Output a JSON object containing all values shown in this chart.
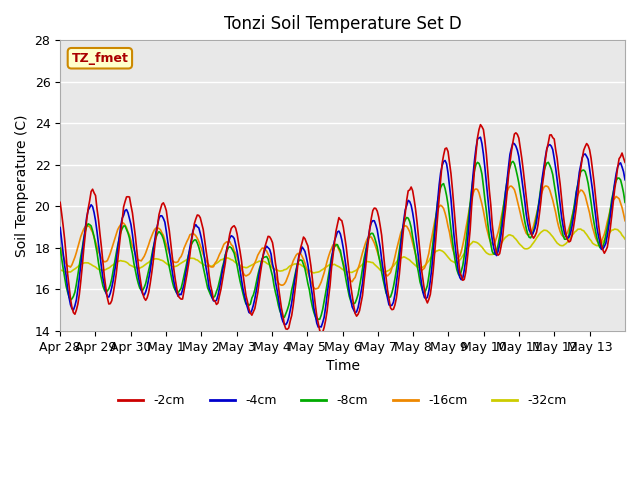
{
  "title": "Tonzi Soil Temperature Set D",
  "xlabel": "Time",
  "ylabel": "Soil Temperature (C)",
  "ylim": [
    14,
    28
  ],
  "label_text": "TZ_fmet",
  "line_colors": {
    "-2cm": "#cc0000",
    "-4cm": "#0000cc",
    "-8cm": "#00aa00",
    "-16cm": "#ee8800",
    "-32cm": "#cccc00"
  },
  "legend_labels": [
    "-2cm",
    "-4cm",
    "-8cm",
    "-16cm",
    "-32cm"
  ],
  "bg_color": "#ffffff",
  "plot_bg_color": "#e8e8e8",
  "grid_color": "#ffffff",
  "tick_dates": [
    "Apr 28",
    "Apr 29",
    "Apr 30",
    "May 1",
    "May 2",
    "May 3",
    "May 4",
    "May 5",
    "May 6",
    "May 7",
    "May 8",
    "May 9",
    "May 10",
    "May 11",
    "May 12",
    "May 13"
  ]
}
